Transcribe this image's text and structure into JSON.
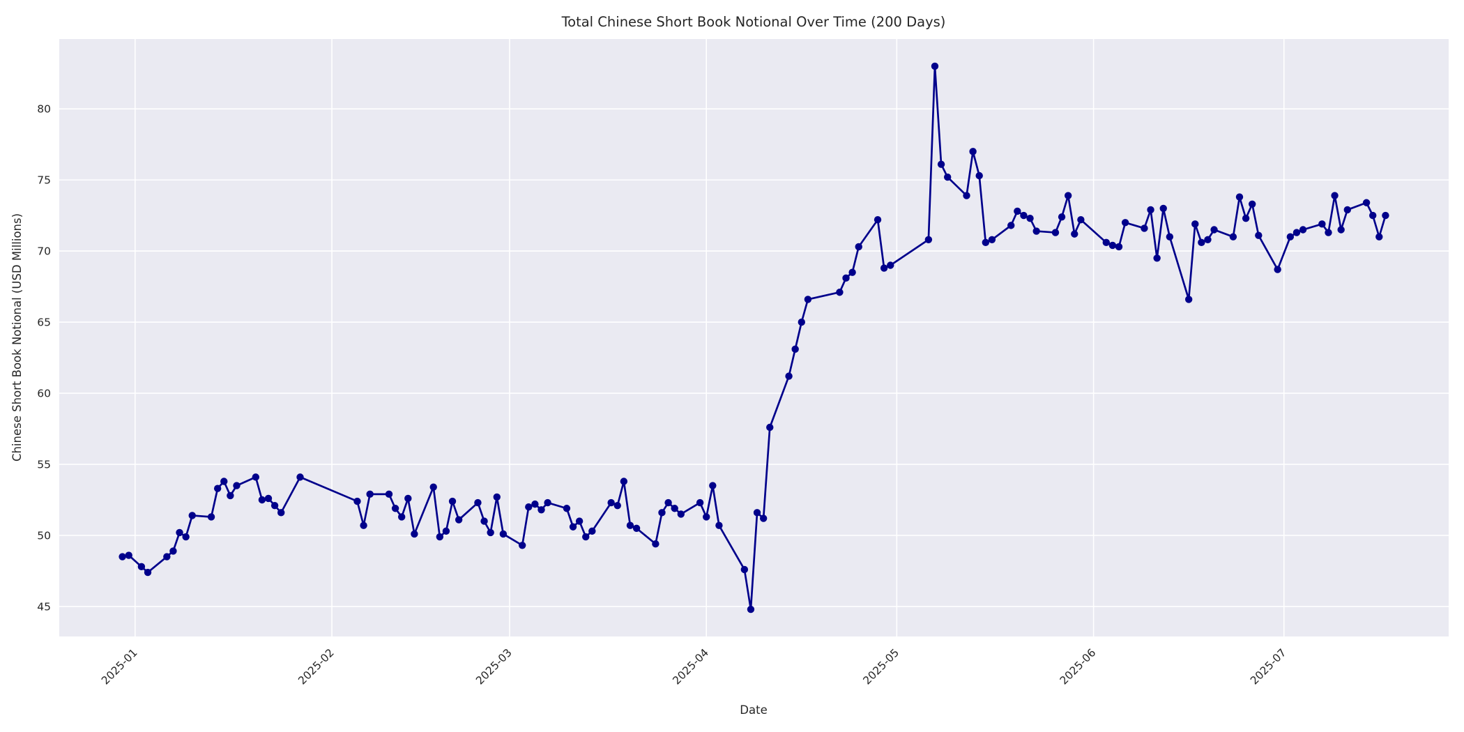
{
  "figure": {
    "background_color": "#ffffff",
    "plot_background_color": "#eaeaf2",
    "grid_color": "#ffffff",
    "line_color": "#00008b",
    "text_color": "#262626"
  },
  "chart_data": {
    "type": "line",
    "title": "Total Chinese Short Book Notional Over Time (200 Days)",
    "xlabel": "Date",
    "ylabel": "Chinese Short Book Notional (USD Millions)",
    "legend": "none",
    "grid": true,
    "marker": "circle",
    "x_tick_labels": [
      "2025-01",
      "2025-02",
      "2025-03",
      "2025-04",
      "2025-05",
      "2025-06",
      "2025-07"
    ],
    "y_ticks": [
      45,
      50,
      55,
      60,
      65,
      70,
      75,
      80
    ],
    "ylim": [
      42.9,
      84.9
    ],
    "x": [
      "2024-12-30",
      "2024-12-31",
      "2025-01-02",
      "2025-01-03",
      "2025-01-06",
      "2025-01-07",
      "2025-01-08",
      "2025-01-09",
      "2025-01-10",
      "2025-01-13",
      "2025-01-14",
      "2025-01-15",
      "2025-01-16",
      "2025-01-17",
      "2025-01-20",
      "2025-01-21",
      "2025-01-22",
      "2025-01-23",
      "2025-01-24",
      "2025-01-27",
      "2025-02-05",
      "2025-02-06",
      "2025-02-07",
      "2025-02-10",
      "2025-02-11",
      "2025-02-12",
      "2025-02-13",
      "2025-02-14",
      "2025-02-17",
      "2025-02-18",
      "2025-02-19",
      "2025-02-20",
      "2025-02-21",
      "2025-02-24",
      "2025-02-25",
      "2025-02-26",
      "2025-02-27",
      "2025-02-28",
      "2025-03-03",
      "2025-03-04",
      "2025-03-05",
      "2025-03-06",
      "2025-03-07",
      "2025-03-10",
      "2025-03-11",
      "2025-03-12",
      "2025-03-13",
      "2025-03-14",
      "2025-03-17",
      "2025-03-18",
      "2025-03-19",
      "2025-03-20",
      "2025-03-21",
      "2025-03-24",
      "2025-03-25",
      "2025-03-26",
      "2025-03-27",
      "2025-03-28",
      "2025-03-31",
      "2025-04-01",
      "2025-04-02",
      "2025-04-03",
      "2025-04-07",
      "2025-04-08",
      "2025-04-09",
      "2025-04-10",
      "2025-04-11",
      "2025-04-14",
      "2025-04-15",
      "2025-04-16",
      "2025-04-17",
      "2025-04-22",
      "2025-04-23",
      "2025-04-24",
      "2025-04-25",
      "2025-04-28",
      "2025-04-29",
      "2025-04-30",
      "2025-05-06",
      "2025-05-07",
      "2025-05-08",
      "2025-05-09",
      "2025-05-12",
      "2025-05-13",
      "2025-05-14",
      "2025-05-15",
      "2025-05-16",
      "2025-05-19",
      "2025-05-20",
      "2025-05-21",
      "2025-05-22",
      "2025-05-23",
      "2025-05-26",
      "2025-05-27",
      "2025-05-28",
      "2025-05-29",
      "2025-05-30",
      "2025-06-03",
      "2025-06-04",
      "2025-06-05",
      "2025-06-06",
      "2025-06-09",
      "2025-06-10",
      "2025-06-11",
      "2025-06-12",
      "2025-06-13",
      "2025-06-16",
      "2025-06-17",
      "2025-06-18",
      "2025-06-19",
      "2025-06-20",
      "2025-06-23",
      "2025-06-24",
      "2025-06-25",
      "2025-06-26",
      "2025-06-27",
      "2025-06-30",
      "2025-07-02",
      "2025-07-03",
      "2025-07-04",
      "2025-07-07",
      "2025-07-08",
      "2025-07-09",
      "2025-07-10",
      "2025-07-11",
      "2025-07-14",
      "2025-07-15",
      "2025-07-16",
      "2025-07-17"
    ],
    "values": [
      48.5,
      48.6,
      47.8,
      47.4,
      48.5,
      48.9,
      50.2,
      49.9,
      51.4,
      51.3,
      53.3,
      53.8,
      52.8,
      53.5,
      54.1,
      52.5,
      52.6,
      52.1,
      51.6,
      54.1,
      52.4,
      50.7,
      52.9,
      52.9,
      51.9,
      51.3,
      52.6,
      50.1,
      53.4,
      49.9,
      50.3,
      52.4,
      51.1,
      52.3,
      51.0,
      50.2,
      52.7,
      50.1,
      49.3,
      52.0,
      52.2,
      51.8,
      52.3,
      51.9,
      50.6,
      51.0,
      49.9,
      50.3,
      52.3,
      52.1,
      53.8,
      50.7,
      50.5,
      49.4,
      51.6,
      52.3,
      51.9,
      51.5,
      52.3,
      51.3,
      53.5,
      50.7,
      47.6,
      44.8,
      51.6,
      51.2,
      57.6,
      61.2,
      63.1,
      65.0,
      66.6,
      67.1,
      68.1,
      68.5,
      70.3,
      72.2,
      68.8,
      69.0,
      70.8,
      83.0,
      76.1,
      75.2,
      73.9,
      77.0,
      75.3,
      70.6,
      70.8,
      71.8,
      72.8,
      72.5,
      72.3,
      71.4,
      71.3,
      72.4,
      73.9,
      71.2,
      72.2,
      70.6,
      70.4,
      70.3,
      72.0,
      71.6,
      72.9,
      69.5,
      73.0,
      71.0,
      66.6,
      71.9,
      70.6,
      70.8,
      71.5,
      71.0,
      73.8,
      72.3,
      73.3,
      71.1,
      68.7,
      71.0,
      71.3,
      71.5,
      71.9,
      71.3,
      73.9,
      71.5,
      72.9,
      73.4,
      72.5,
      71.0,
      72.5
    ]
  }
}
